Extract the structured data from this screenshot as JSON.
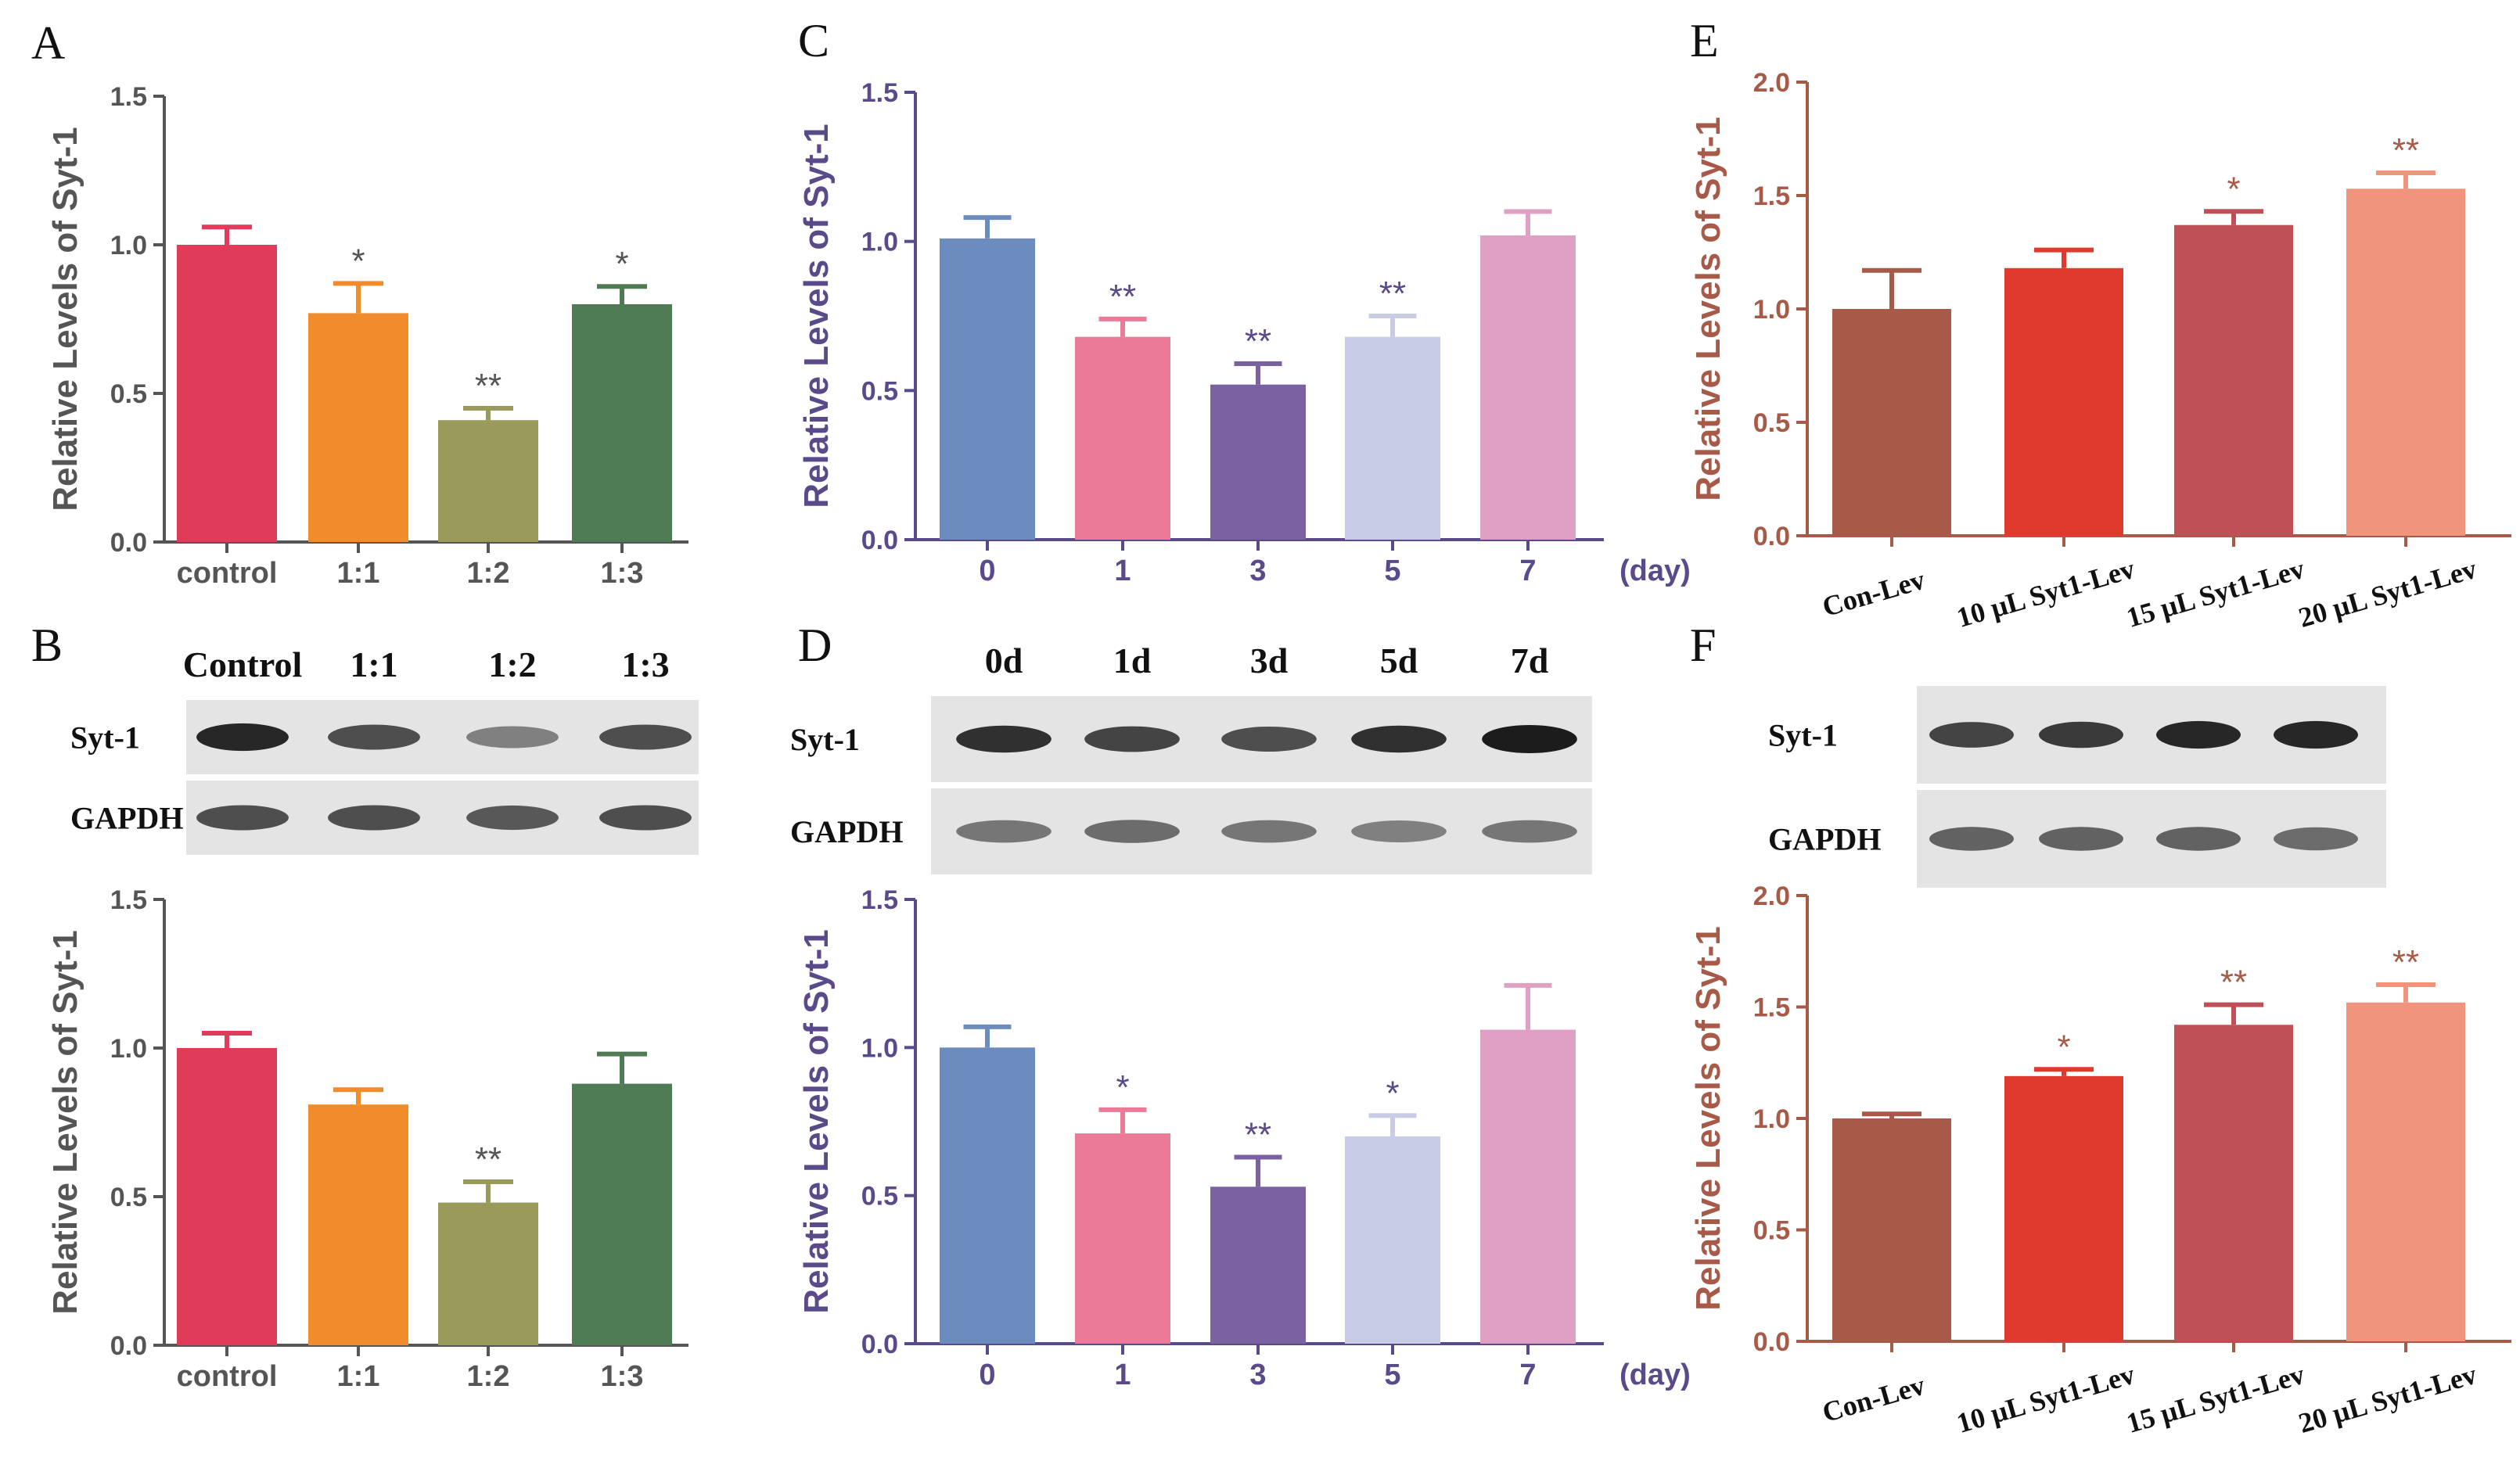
{
  "colors": {
    "groupA": [
      "#e03c5a",
      "#f08c2c",
      "#9a9a5a",
      "#4e7a54"
    ],
    "groupC": [
      "#6c8cc0",
      "#ea7a96",
      "#7a62a0",
      "#c8cce6",
      "#e0a0c4"
    ],
    "groupE": [
      "#a85a48",
      "#e03a2e",
      "#c05058",
      "#f0947c"
    ],
    "axisA": "#555555",
    "axisC": "#5a4a8a",
    "axisE": "#a85a48"
  },
  "blots": {
    "B": {
      "letter": "B",
      "lanes": [
        "Control",
        "1:1",
        "1:2",
        "1:3"
      ],
      "rows": [
        "Syt-1",
        "GAPDH"
      ],
      "intensity": [
        [
          0.95,
          0.75,
          0.5,
          0.75
        ],
        [
          0.75,
          0.75,
          0.7,
          0.75
        ]
      ]
    },
    "D": {
      "letter": "D",
      "lanes": [
        "0d",
        "1d",
        "3d",
        "5d",
        "7d"
      ],
      "rows": [
        "Syt-1",
        "GAPDH"
      ],
      "intensity": [
        [
          0.9,
          0.8,
          0.75,
          0.9,
          1.0
        ],
        [
          0.55,
          0.6,
          0.55,
          0.5,
          0.55
        ]
      ]
    },
    "F": {
      "letter": "F",
      "lanes": [
        "",
        "",
        "",
        ""
      ],
      "rows": [
        "Syt-1",
        "GAPDH"
      ],
      "intensity": [
        [
          0.8,
          0.85,
          0.95,
          0.95
        ],
        [
          0.65,
          0.65,
          0.65,
          0.6
        ]
      ]
    }
  },
  "chart_data": [
    {
      "panel": "A",
      "type": "bar",
      "ylabel": "Relative  Levels of Syt-1",
      "categories": [
        "control",
        "1:1",
        "1:2",
        "1:3"
      ],
      "values": [
        1.0,
        0.77,
        0.41,
        0.8
      ],
      "errors": [
        0.06,
        0.1,
        0.04,
        0.06
      ],
      "significance": [
        "",
        "*",
        "**",
        "*"
      ],
      "ylim": [
        0,
        1.5
      ],
      "yticks": [
        "0.0",
        "0.5",
        "1.0",
        "1.5"
      ],
      "xunit": "",
      "colorKey": "groupA",
      "axisKey": "axisA"
    },
    {
      "panel": "B",
      "type": "bar",
      "ylabel": "Relative  Levels of Syt-1",
      "categories": [
        "control",
        "1:1",
        "1:2",
        "1:3"
      ],
      "values": [
        1.0,
        0.81,
        0.48,
        0.88
      ],
      "errors": [
        0.05,
        0.05,
        0.07,
        0.1
      ],
      "significance": [
        "",
        "",
        "**",
        ""
      ],
      "ylim": [
        0,
        1.5
      ],
      "yticks": [
        "0.0",
        "0.5",
        "1.0",
        "1.5"
      ],
      "xunit": "",
      "colorKey": "groupA",
      "axisKey": "axisA"
    },
    {
      "panel": "C",
      "type": "bar",
      "ylabel": "Relative  Levels of Syt-1",
      "categories": [
        "0",
        "1",
        "3",
        "5",
        "7"
      ],
      "values": [
        1.01,
        0.68,
        0.52,
        0.68,
        1.02
      ],
      "errors": [
        0.07,
        0.06,
        0.07,
        0.07,
        0.08
      ],
      "significance": [
        "",
        "**",
        "**",
        "**",
        ""
      ],
      "ylim": [
        0,
        1.5
      ],
      "yticks": [
        "0.0",
        "0.5",
        "1.0",
        "1.5"
      ],
      "xunit": "(day)",
      "colorKey": "groupC",
      "axisKey": "axisC"
    },
    {
      "panel": "D",
      "type": "bar",
      "ylabel": "Relative  Levels of Syt-1",
      "categories": [
        "0",
        "1",
        "3",
        "5",
        "7"
      ],
      "values": [
        1.0,
        0.71,
        0.53,
        0.7,
        1.06
      ],
      "errors": [
        0.07,
        0.08,
        0.1,
        0.07,
        0.15
      ],
      "significance": [
        "",
        "*",
        "**",
        "*",
        ""
      ],
      "ylim": [
        0,
        1.5
      ],
      "yticks": [
        "0.0",
        "0.5",
        "1.0",
        "1.5"
      ],
      "xunit": "(day)",
      "colorKey": "groupC",
      "axisKey": "axisC"
    },
    {
      "panel": "E",
      "type": "bar",
      "ylabel": "Relative  Levels of Syt-1",
      "categories": [
        "Con-Lev",
        "10 μL  Syt1-Lev",
        "15 μL  Syt1-Lev",
        "20 μL  Syt1-Lev"
      ],
      "values": [
        1.0,
        1.18,
        1.37,
        1.53
      ],
      "errors": [
        0.17,
        0.08,
        0.06,
        0.07
      ],
      "significance": [
        "",
        "",
        "*",
        "**"
      ],
      "ylim": [
        0,
        2.0
      ],
      "yticks": [
        "0.0",
        "0.5",
        "1.0",
        "1.5",
        "2.0"
      ],
      "xunit": "",
      "colorKey": "groupE",
      "axisKey": "axisE"
    },
    {
      "panel": "F",
      "type": "bar",
      "ylabel": "Relative  Levels of Syt-1",
      "categories": [
        "Con-Lev",
        "10 μL  Syt1-Lev",
        "15 μL  Syt1-Lev",
        "20 μL  Syt1-Lev"
      ],
      "values": [
        1.0,
        1.19,
        1.42,
        1.52
      ],
      "errors": [
        0.02,
        0.03,
        0.09,
        0.08
      ],
      "significance": [
        "",
        "*",
        "**",
        "**"
      ],
      "ylim": [
        0,
        2.0
      ],
      "yticks": [
        "0.0",
        "0.5",
        "1.0",
        "1.5",
        "2.0"
      ],
      "xunit": "",
      "colorKey": "groupE",
      "axisKey": "axisE"
    }
  ]
}
